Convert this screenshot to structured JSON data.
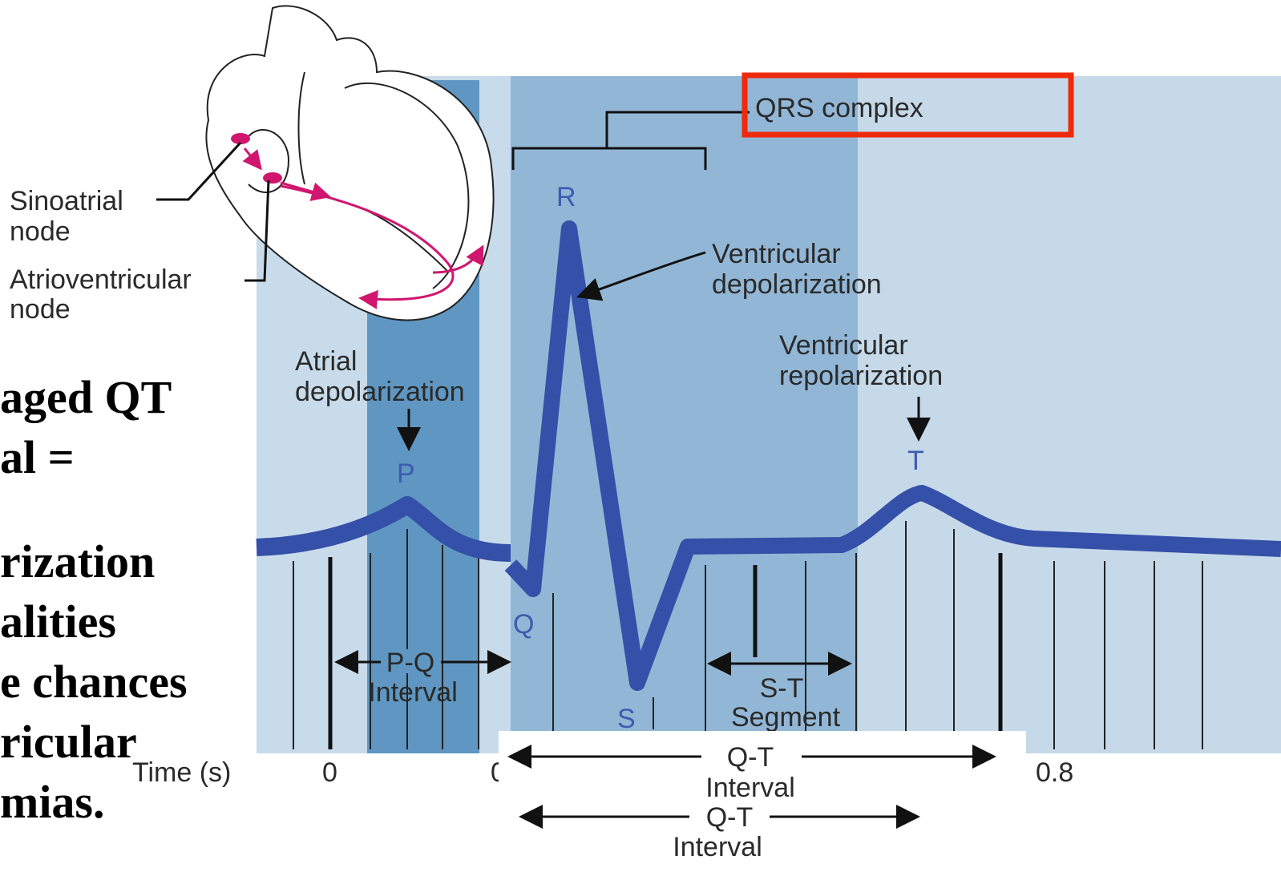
{
  "slide_text": {
    "lines": [
      "aged QT",
      "al =",
      "rization",
      "alities",
      "e chances",
      "ricular",
      "mias."
    ]
  },
  "diagram": {
    "heart_labels": {
      "sinoatrial": [
        "Sinoatrial",
        "node"
      ],
      "atrioventricular": [
        "Atrioventricular",
        "node"
      ]
    },
    "qrs_complex": "QRS complex",
    "waves": {
      "p": "P",
      "q": "Q",
      "r": "R",
      "s": "S",
      "t": "T"
    },
    "annotations": {
      "ventricular_depolarization": [
        "Ventricular",
        "depolarization"
      ],
      "atrial_depolarization": [
        "Atrial",
        "depolarization"
      ],
      "ventricular_repolarization": [
        "Ventricular",
        "repolarization"
      ]
    },
    "intervals": {
      "pq": [
        "P-Q",
        "Interval"
      ],
      "st": [
        "S-T",
        "Segment"
      ],
      "qt_upper": [
        "Q-T",
        "Interval"
      ],
      "qt_lower": [
        "Q-T",
        "Interval"
      ]
    },
    "time_axis": {
      "label": "Time (s)",
      "ticks": [
        "0",
        "0",
        "0.8"
      ]
    }
  }
}
